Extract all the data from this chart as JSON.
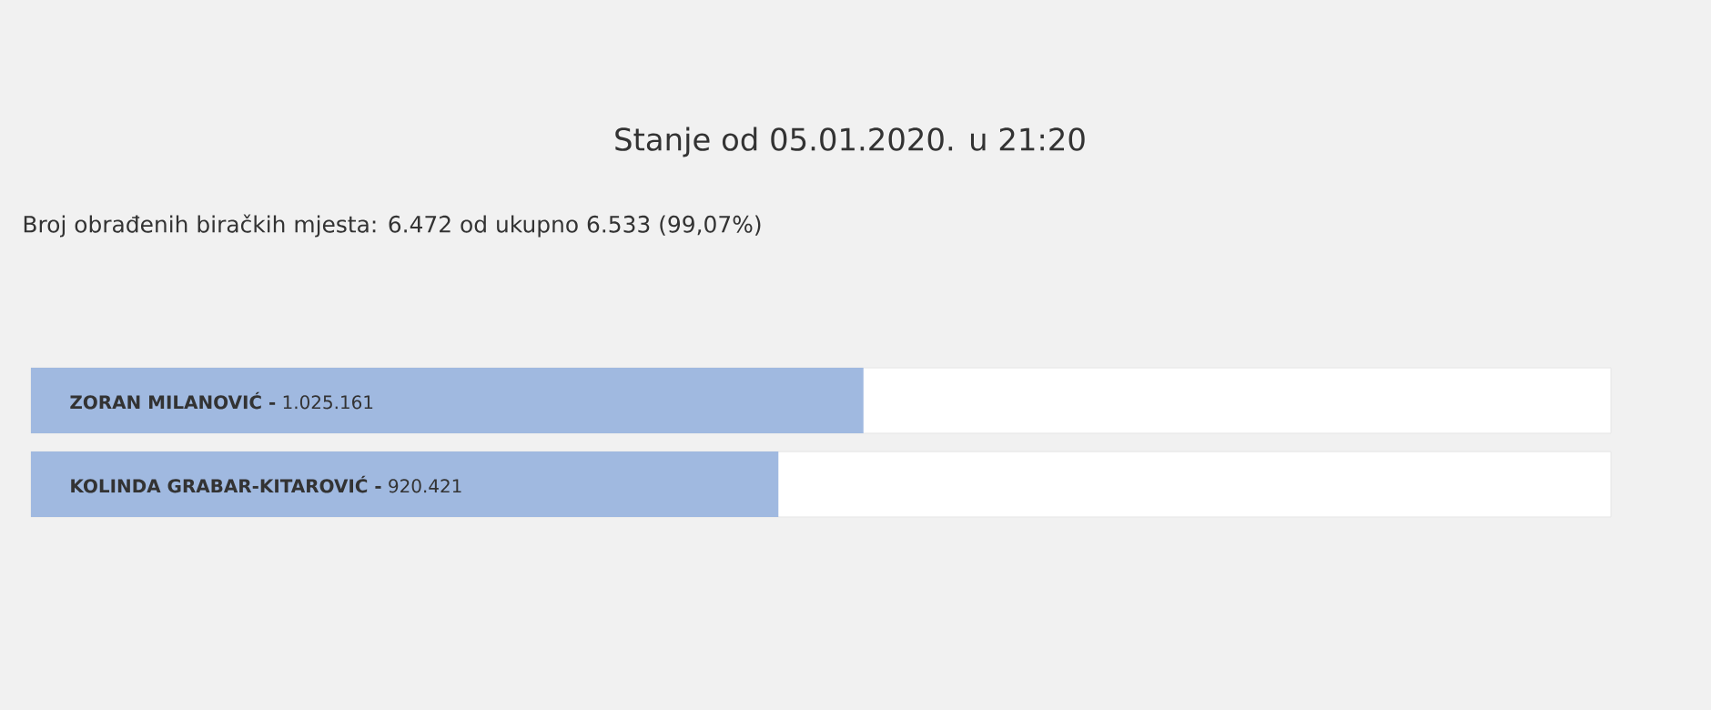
{
  "chart_data": {
    "type": "bar",
    "orientation": "horizontal",
    "title": "Stanje od 05.01.2020. u 21:20",
    "subtitle": "Broj obrađenih biračkih mjesta: 6.472 od ukupno 6.533 (99,07%)",
    "categories": [
      "ZORAN MILANOVIĆ -",
      "KOLINDA GRABAR-KITAROVIĆ -"
    ],
    "values": [
      1025161,
      920421
    ],
    "value_labels": [
      "1.025.161",
      "920.421"
    ],
    "color": "#a0b9e0",
    "xlim": [
      0,
      1945582
    ]
  }
}
